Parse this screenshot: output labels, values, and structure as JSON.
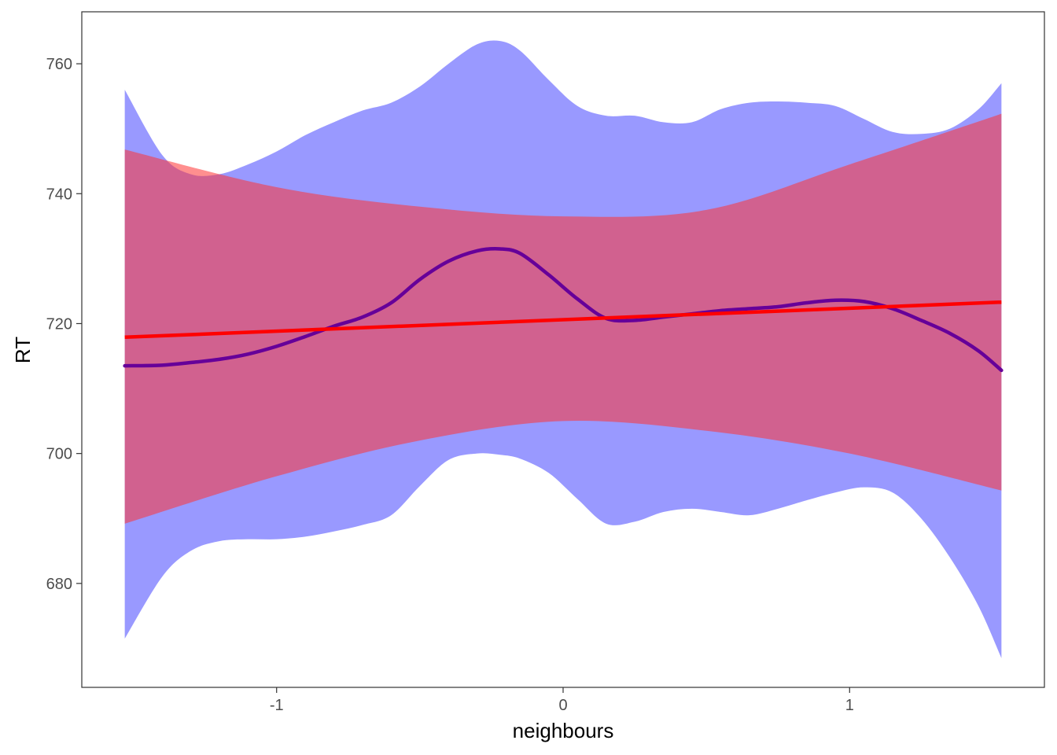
{
  "chart_data": {
    "type": "line",
    "xlabel": "neighbours",
    "ylabel": "RT",
    "xlim": [
      -1.68,
      1.68
    ],
    "ylim": [
      664,
      768
    ],
    "x_ticks": [
      -1,
      0,
      1
    ],
    "x_tick_labels": [
      "-1",
      "0",
      "1"
    ],
    "y_ticks": [
      680,
      700,
      720,
      740,
      760
    ],
    "y_tick_labels": [
      "680",
      "700",
      "720",
      "740",
      "760"
    ],
    "grid": false,
    "legend": "none",
    "series": [
      {
        "kind": "smooth",
        "color": "#660099",
        "ribbon_color": "#9999ff",
        "x": [
          -1.53,
          -1.4,
          -1.3,
          -1.2,
          -1.1,
          -1.0,
          -0.9,
          -0.8,
          -0.7,
          -0.6,
          -0.5,
          -0.4,
          -0.3,
          -0.22,
          -0.15,
          -0.05,
          0.05,
          0.15,
          0.25,
          0.35,
          0.45,
          0.55,
          0.65,
          0.75,
          0.85,
          0.95,
          1.05,
          1.15,
          1.25,
          1.35,
          1.45,
          1.53
        ],
        "y": [
          713.5,
          713.6,
          714.0,
          714.5,
          715.3,
          716.5,
          718.0,
          719.6,
          721.0,
          723.2,
          726.8,
          729.6,
          731.2,
          731.5,
          730.8,
          727.5,
          723.8,
          720.8,
          720.5,
          721.0,
          721.5,
          722.0,
          722.3,
          722.6,
          723.2,
          723.6,
          723.4,
          722.3,
          720.5,
          718.5,
          715.8,
          712.8
        ],
        "upper": [
          756.0,
          746.0,
          743.0,
          743.0,
          744.5,
          746.5,
          749.0,
          751.0,
          752.8,
          754.0,
          756.5,
          760.0,
          763.0,
          763.5,
          762.0,
          757.5,
          753.5,
          752.0,
          752.0,
          751.0,
          751.0,
          753.0,
          754.0,
          754.2,
          754.0,
          753.5,
          751.5,
          749.5,
          749.2,
          750.0,
          753.0,
          757.0
        ],
        "lower": [
          671.5,
          681.0,
          685.0,
          686.5,
          686.8,
          686.8,
          687.2,
          688.0,
          689.0,
          690.5,
          695.0,
          699.0,
          700.0,
          699.8,
          699.2,
          697.0,
          693.0,
          689.2,
          689.5,
          691.0,
          691.5,
          691.0,
          690.5,
          691.5,
          692.8,
          694.0,
          694.8,
          694.0,
          690.0,
          684.0,
          676.5,
          668.5
        ]
      },
      {
        "kind": "linear",
        "color": "#ff0000",
        "ribbon_color": "#ff3333",
        "x": [
          -1.53,
          1.53
        ],
        "y": [
          717.9,
          723.3
        ],
        "upper_linear": {
          "x": [
            -1.53,
            -1.0,
            -0.5,
            0.0,
            0.5,
            1.0,
            1.53
          ],
          "y": [
            746.8,
            741.0,
            738.0,
            736.5,
            737.5,
            744.5,
            752.3
          ]
        },
        "lower_linear": {
          "x": [
            -1.53,
            -1.0,
            -0.5,
            0.0,
            0.5,
            1.0,
            1.53
          ],
          "y": [
            689.2,
            696.5,
            702.0,
            705.0,
            703.5,
            700.0,
            694.3
          ]
        }
      }
    ]
  }
}
